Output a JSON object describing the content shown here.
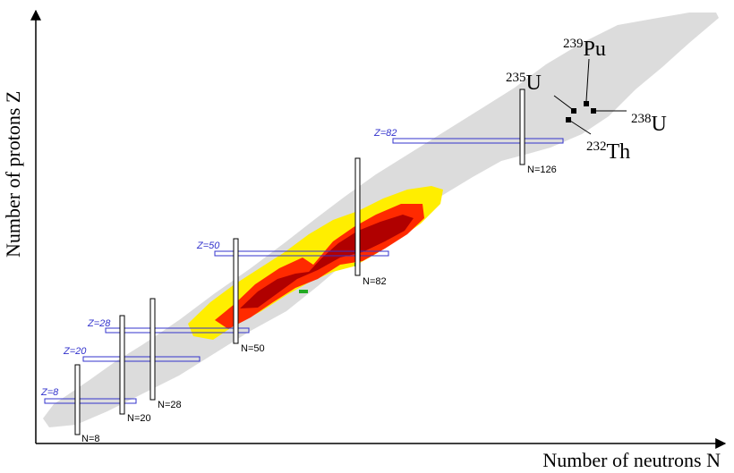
{
  "axes": {
    "y_label": "Number of protons Z",
    "x_label": "Number of neutrons N"
  },
  "magic_numbers": {
    "proton": [
      {
        "label": "Z=8",
        "value": 8
      },
      {
        "label": "Z=20",
        "value": 20
      },
      {
        "label": "Z=28",
        "value": 28
      },
      {
        "label": "Z=50",
        "value": 50
      },
      {
        "label": "Z=82",
        "value": 82
      }
    ],
    "neutron": [
      {
        "label": "N=8",
        "value": 8
      },
      {
        "label": "N=20",
        "value": 20
      },
      {
        "label": "N=28",
        "value": 28
      },
      {
        "label": "N=50",
        "value": 50
      },
      {
        "label": "N=82",
        "value": 82
      },
      {
        "label": "N=126",
        "value": 126
      }
    ]
  },
  "isotopes": [
    {
      "mass": "235",
      "symbol": "U"
    },
    {
      "mass": "239",
      "symbol": "Pu"
    },
    {
      "mass": "238",
      "symbol": "U"
    },
    {
      "mass": "232",
      "symbol": "Th"
    }
  ],
  "colors": {
    "known_nuclei": "#dcdcdc",
    "yield_high": "#b00000",
    "yield_mid": "#ff2a00",
    "yield_low": "#ffee00",
    "proton_shell": "#3333cc",
    "neutron_shell": "#000000",
    "axis": "#000000"
  }
}
